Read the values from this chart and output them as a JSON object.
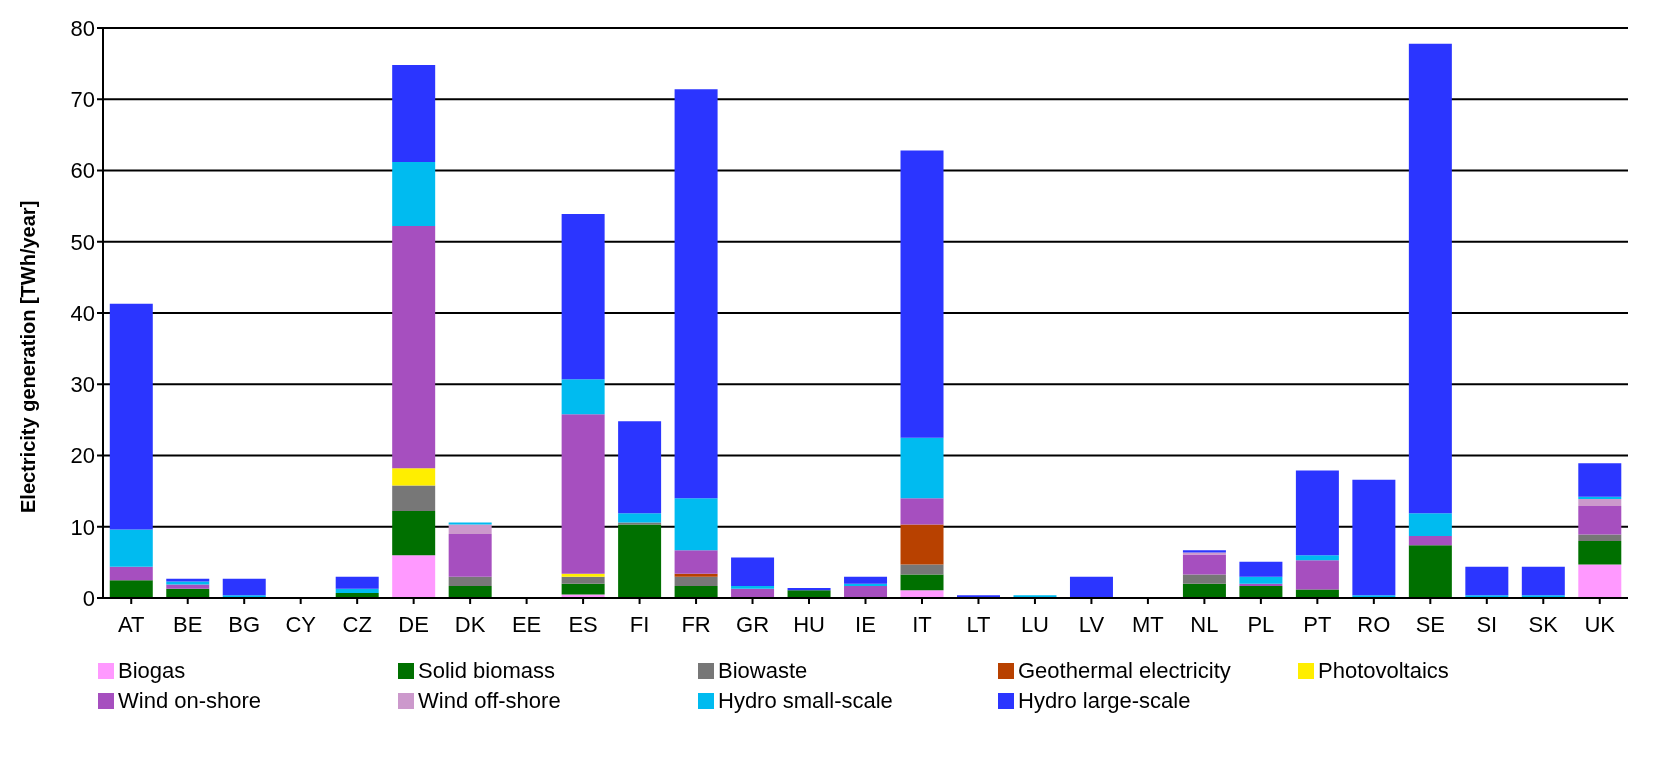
{
  "chart_data": {
    "type": "bar",
    "stacked": true,
    "ylabel": "Electricity generation [TWh/year]",
    "categories": [
      "AT",
      "BE",
      "BG",
      "CY",
      "CZ",
      "DE",
      "DK",
      "EE",
      "ES",
      "FI",
      "FR",
      "GR",
      "HU",
      "IE",
      "IT",
      "LT",
      "LU",
      "LV",
      "MT",
      "NL",
      "PL",
      "PT",
      "RO",
      "SE",
      "SI",
      "SK",
      "UK"
    ],
    "series": [
      {
        "name": "Biogas",
        "color": "#ff99ff",
        "values": [
          0,
          0,
          0,
          0,
          0,
          6.0,
          0,
          0,
          0.5,
          0,
          0,
          0,
          0,
          0,
          1.1,
          0,
          0,
          0,
          0,
          0,
          0,
          0,
          0,
          0,
          0,
          0,
          4.7
        ]
      },
      {
        "name": "Solid biomass",
        "color": "#007000",
        "values": [
          2.5,
          1.3,
          0,
          0,
          0.7,
          6.2,
          1.7,
          0,
          1.5,
          10.3,
          1.7,
          0,
          1.1,
          0,
          2.2,
          0,
          0,
          0,
          0,
          2.0,
          1.7,
          1.2,
          0,
          7.4,
          0,
          0,
          3.3
        ]
      },
      {
        "name": "Biowaste",
        "color": "#777777",
        "values": [
          0,
          0,
          0,
          0,
          0,
          3.6,
          1.3,
          0,
          1.0,
          0.3,
          1.3,
          0,
          0,
          0,
          1.4,
          0,
          0,
          0,
          0,
          1.3,
          0,
          0,
          0,
          0,
          0,
          0,
          0.9
        ]
      },
      {
        "name": "Geothermal electricity",
        "color": "#b84100",
        "values": [
          0,
          0,
          0,
          0,
          0,
          0,
          0,
          0,
          0,
          0,
          0.4,
          0,
          0,
          0,
          5.6,
          0,
          0,
          0,
          0,
          0,
          0,
          0,
          0,
          0,
          0,
          0,
          0
        ]
      },
      {
        "name": "Photovoltaics",
        "color": "#ffee00",
        "values": [
          0,
          0,
          0,
          0,
          0,
          2.4,
          0,
          0,
          0.4,
          0,
          0,
          0,
          0,
          0,
          0,
          0,
          0,
          0,
          0,
          0,
          0,
          0,
          0,
          0,
          0,
          0,
          0
        ]
      },
      {
        "name": "Wind on-shore",
        "color": "#a64fbf",
        "values": [
          1.9,
          0.6,
          0,
          0,
          0,
          34.0,
          6.0,
          0,
          22.4,
          0,
          3.3,
          1.3,
          0,
          1.7,
          3.7,
          0,
          0,
          0,
          0,
          2.8,
          0.3,
          4.1,
          0,
          1.3,
          0,
          0,
          4.0
        ]
      },
      {
        "name": "Wind off-shore",
        "color": "#cc99cc",
        "values": [
          0,
          0,
          0,
          0,
          0,
          0,
          1.3,
          0,
          0,
          0,
          0,
          0,
          0,
          0,
          0,
          0,
          0,
          0,
          0,
          0.3,
          0,
          0,
          0,
          0,
          0,
          0,
          1.0
        ]
      },
      {
        "name": "Hydro small-scale",
        "color": "#00bbf0",
        "values": [
          5.2,
          0.4,
          0.4,
          0,
          0.6,
          9.0,
          0.3,
          0,
          4.9,
          1.3,
          7.3,
          0.4,
          0,
          0.3,
          8.5,
          0,
          0.4,
          0,
          0,
          0,
          1.0,
          0.7,
          0.4,
          3.2,
          0.4,
          0.4,
          0.3
        ]
      },
      {
        "name": "Hydro large-scale",
        "color": "#2b35ff",
        "values": [
          31.7,
          0.4,
          2.3,
          0,
          1.7,
          13.6,
          0,
          0,
          23.2,
          12.9,
          57.4,
          4.0,
          0.3,
          1.0,
          40.3,
          0.4,
          0,
          3.0,
          0,
          0.3,
          2.1,
          11.9,
          16.2,
          65.9,
          4.0,
          4.0,
          4.7
        ]
      }
    ],
    "ylim": [
      0,
      80
    ],
    "yticks": [
      0,
      10,
      20,
      30,
      40,
      50,
      60,
      70,
      80
    ],
    "grid": "y",
    "legend": "bottom"
  }
}
